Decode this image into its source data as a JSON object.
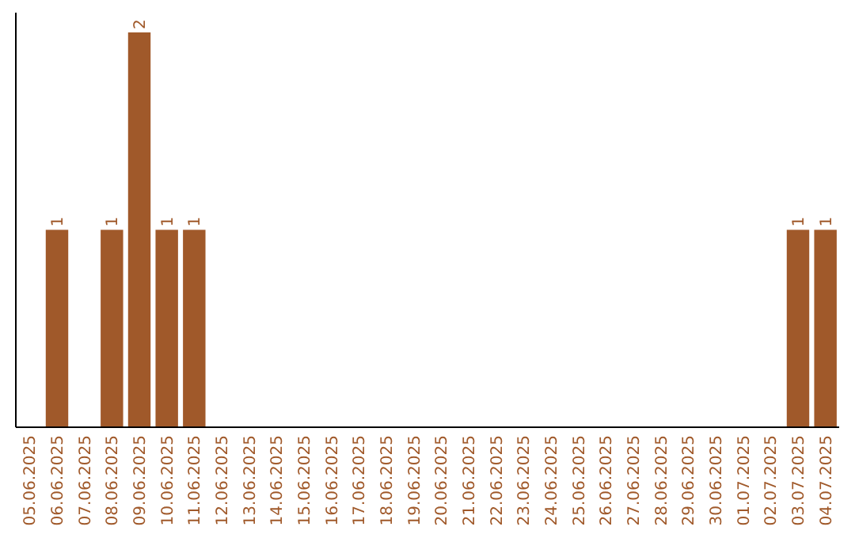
{
  "chart_data": {
    "type": "bar",
    "categories": [
      "05.06.2025",
      "06.06.2025",
      "07.06.2025",
      "08.06.2025",
      "09.06.2025",
      "10.06.2025",
      "11.06.2025",
      "12.06.2025",
      "13.06.2025",
      "14.06.2025",
      "15.06.2025",
      "16.06.2025",
      "17.06.2025",
      "18.06.2025",
      "19.06.2025",
      "20.06.2025",
      "21.06.2025",
      "22.06.2025",
      "23.06.2025",
      "24.06.2025",
      "25.06.2025",
      "26.06.2025",
      "27.06.2025",
      "28.06.2025",
      "29.06.2025",
      "30.06.2025",
      "01.07.2025",
      "02.07.2025",
      "03.07.2025",
      "04.07.2025"
    ],
    "values": [
      0,
      1,
      0,
      1,
      2,
      1,
      1,
      0,
      0,
      0,
      0,
      0,
      0,
      0,
      0,
      0,
      0,
      0,
      0,
      0,
      0,
      0,
      0,
      0,
      0,
      0,
      0,
      0,
      1,
      1
    ],
    "value_labels": [
      null,
      "1",
      null,
      "1",
      "2",
      "1",
      "1",
      null,
      null,
      null,
      null,
      null,
      null,
      null,
      null,
      null,
      null,
      null,
      null,
      null,
      null,
      null,
      null,
      null,
      null,
      null,
      null,
      null,
      "1",
      "1"
    ],
    "color": "#a0592a",
    "tick_labels": "x"
  }
}
